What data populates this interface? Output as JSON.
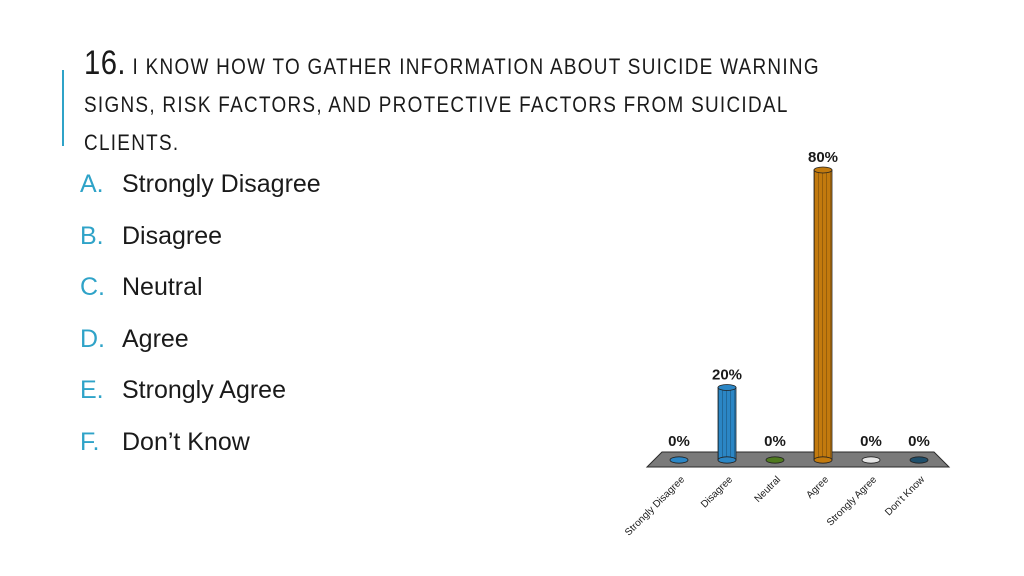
{
  "slide": {
    "number": "16.",
    "title": "I know how to gather information about suicide warning signs, risk factors, and protective factors from suicidal clients.",
    "accent_color": "#2fa3c8"
  },
  "options": [
    {
      "letter": "A.",
      "label": "Strongly Disagree"
    },
    {
      "letter": "B.",
      "label": "Disagree"
    },
    {
      "letter": "C.",
      "label": "Neutral"
    },
    {
      "letter": "D.",
      "label": "Agree"
    },
    {
      "letter": "E.",
      "label": "Strongly Agree"
    },
    {
      "letter": "F.",
      "label": "Don’t Know"
    }
  ],
  "chart_data": {
    "type": "bar",
    "categories": [
      "Strongly Disagree",
      "Disagree",
      "Neutral",
      "Agree",
      "Strongly Agree",
      "Don’t Know"
    ],
    "values": [
      0,
      20,
      0,
      80,
      0,
      0
    ],
    "data_labels": [
      "0%",
      "20%",
      "0%",
      "80%",
      "0%",
      "0%"
    ],
    "colors": [
      "#2b86c5",
      "#2b86c5",
      "#4f7a1f",
      "#c27a0e",
      "#e6e6e6",
      "#1f4f6b"
    ],
    "floor_color": "#777777",
    "ylim": [
      0,
      80
    ],
    "grid": false,
    "legend": "none"
  }
}
